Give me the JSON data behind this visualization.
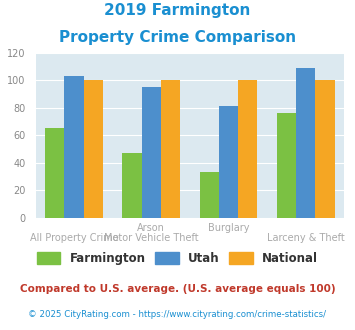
{
  "title_line1": "2019 Farmington",
  "title_line2": "Property Crime Comparison",
  "series": {
    "Farmington": [
      65,
      47,
      33,
      76
    ],
    "Utah": [
      103,
      95,
      81,
      109
    ],
    "National": [
      100,
      100,
      100,
      100
    ]
  },
  "colors": {
    "Farmington": "#7bc143",
    "Utah": "#4d8fcc",
    "National": "#f5a623"
  },
  "x_labels_top": [
    "",
    "Arson",
    "Burglary",
    ""
  ],
  "x_labels_bottom": [
    "All Property Crime",
    "Motor Vehicle Theft",
    "",
    "Larceny & Theft"
  ],
  "ylim": [
    0,
    120
  ],
  "yticks": [
    0,
    20,
    40,
    60,
    80,
    100,
    120
  ],
  "bar_width": 0.25,
  "title_color": "#1a8fd1",
  "plot_bg_color": "#dce9f0",
  "fig_bg_color": "#ffffff",
  "footnote1": "Compared to U.S. average. (U.S. average equals 100)",
  "footnote2": "© 2025 CityRating.com - https://www.cityrating.com/crime-statistics/",
  "footnote1_color": "#c0392b",
  "footnote2_color": "#1a8fd1",
  "grid_color": "#ffffff",
  "axis_label_color": "#aaaaaa",
  "tick_label_color": "#888888"
}
